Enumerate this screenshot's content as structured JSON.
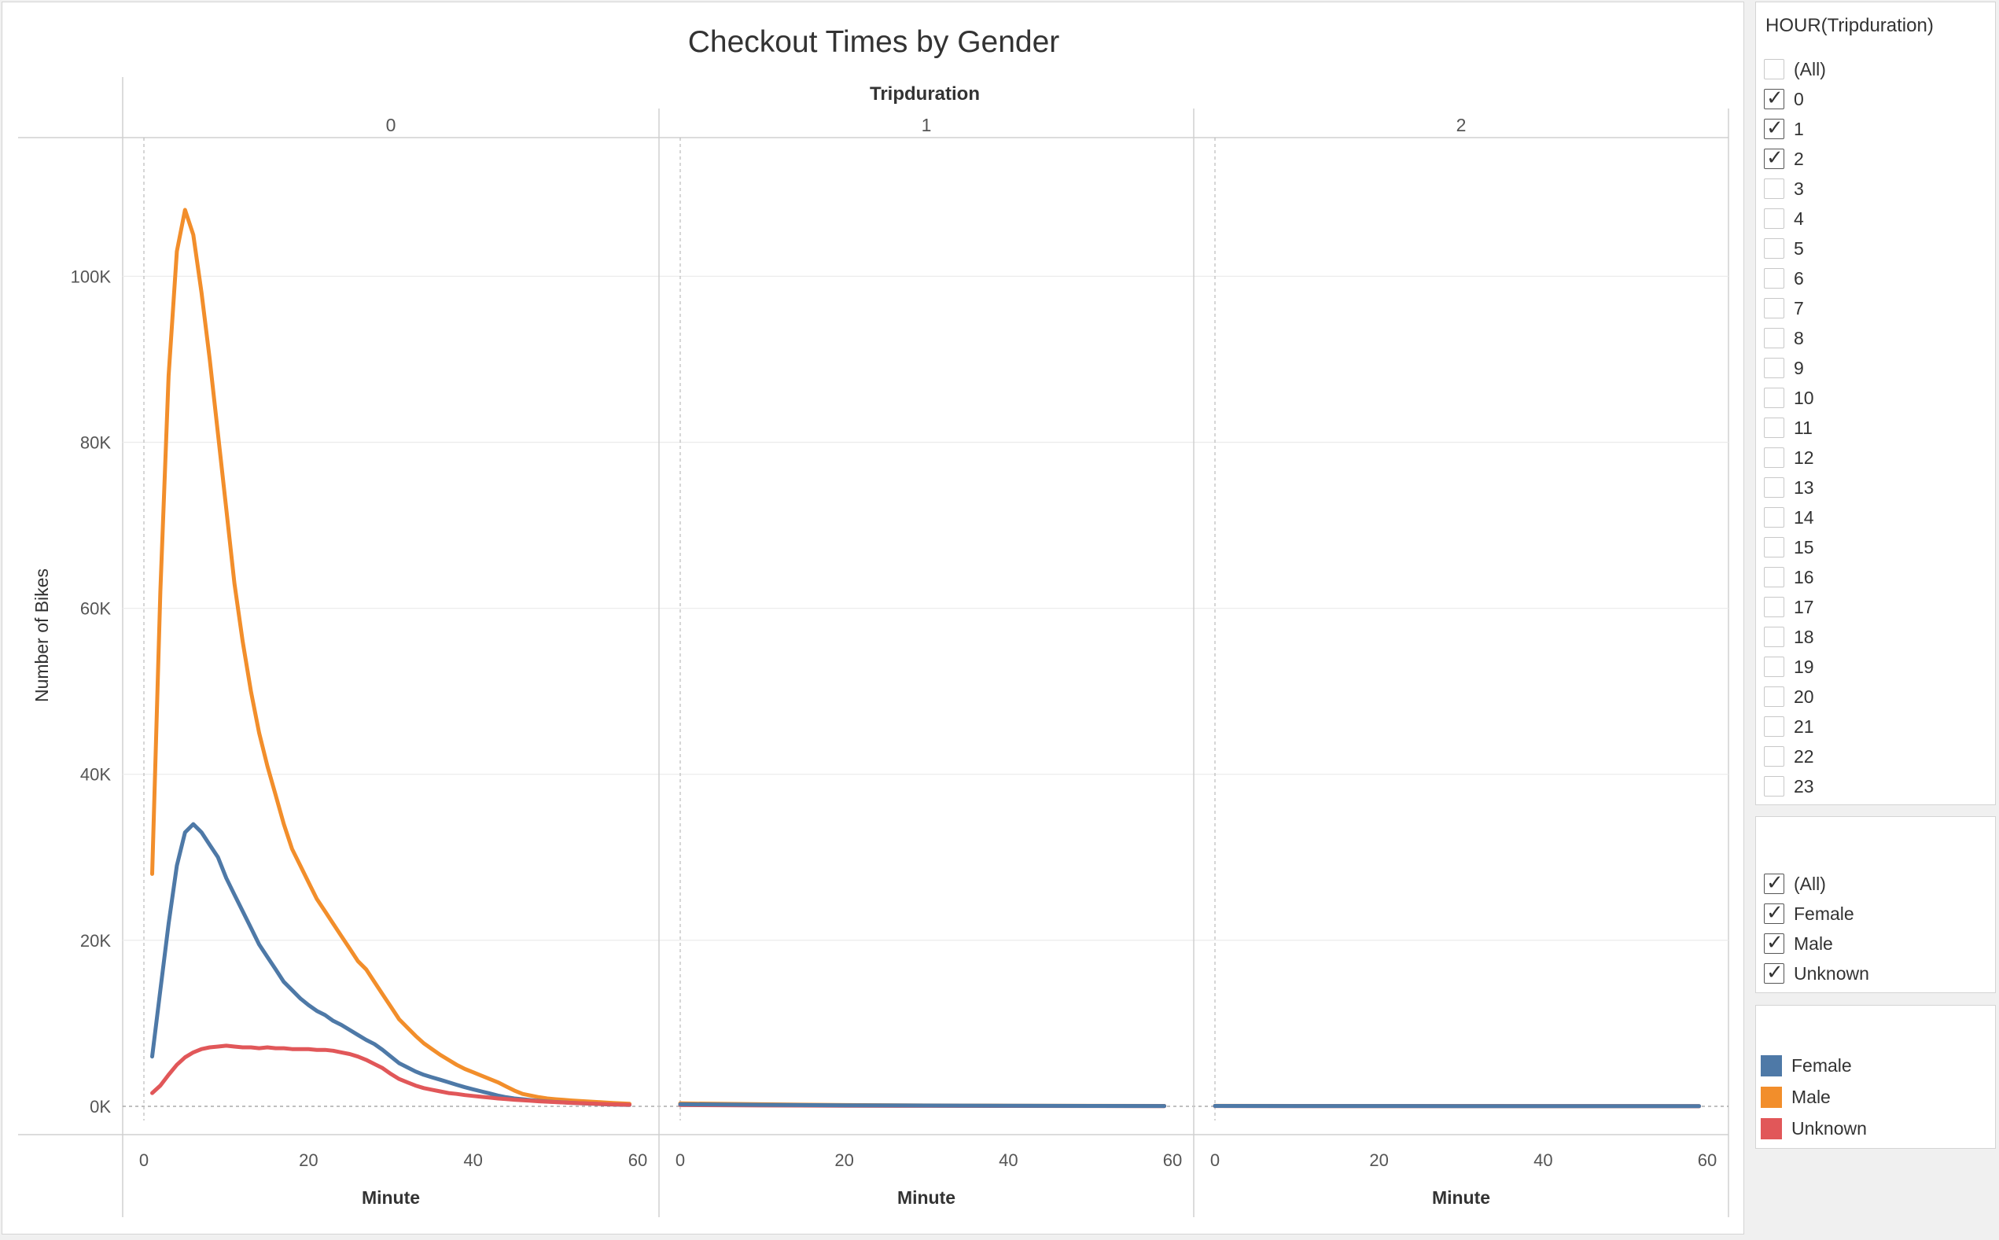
{
  "chart_data": {
    "type": "line",
    "title": "Checkout Times by Gender",
    "column_header": "Tripduration",
    "ylabel": "Number of Bikes",
    "xlabel": "Minute",
    "ylim": [
      0,
      115000
    ],
    "xlim": [
      0,
      60
    ],
    "yticks": [
      "0K",
      "20K",
      "40K",
      "60K",
      "80K",
      "100K"
    ],
    "ytick_values": [
      0,
      20000,
      40000,
      60000,
      80000,
      100000
    ],
    "xticks": [
      "0",
      "20",
      "40",
      "60"
    ],
    "xtick_values": [
      0,
      20,
      40,
      60
    ],
    "grid": true,
    "legend_placement": "right",
    "colors": {
      "Female": "#4e79a7",
      "Male": "#f28e2b",
      "Unknown": "#e15759"
    },
    "panels": [
      {
        "label": "0",
        "series": [
          {
            "name": "Male",
            "x": [
              1,
              2,
              3,
              4,
              5,
              6,
              7,
              8,
              9,
              10,
              11,
              12,
              13,
              14,
              15,
              16,
              17,
              18,
              19,
              20,
              21,
              22,
              23,
              24,
              25,
              26,
              27,
              28,
              29,
              30,
              31,
              32,
              33,
              34,
              35,
              36,
              37,
              38,
              39,
              40,
              41,
              42,
              43,
              44,
              45,
              46,
              47,
              48,
              49,
              50,
              51,
              52,
              53,
              54,
              55,
              56,
              57,
              58,
              59
            ],
            "y": [
              28000,
              62000,
              88000,
              103000,
              108000,
              105000,
              98000,
              90000,
              81000,
              72000,
              63000,
              56000,
              50000,
              45000,
              41000,
              37500,
              34000,
              31000,
              29000,
              27000,
              25000,
              23500,
              22000,
              20500,
              19000,
              17500,
              16500,
              15000,
              13500,
              12000,
              10500,
              9500,
              8500,
              7600,
              6900,
              6200,
              5600,
              5000,
              4500,
              4100,
              3700,
              3300,
              2900,
              2400,
              1900,
              1500,
              1300,
              1100,
              950,
              850,
              780,
              700,
              640,
              580,
              520,
              460,
              400,
              350,
              300
            ]
          },
          {
            "name": "Female",
            "x": [
              1,
              2,
              3,
              4,
              5,
              6,
              7,
              8,
              9,
              10,
              11,
              12,
              13,
              14,
              15,
              16,
              17,
              18,
              19,
              20,
              21,
              22,
              23,
              24,
              25,
              26,
              27,
              28,
              29,
              30,
              31,
              32,
              33,
              34,
              35,
              36,
              37,
              38,
              39,
              40,
              41,
              42,
              43,
              44,
              45,
              46,
              47,
              48,
              49,
              50,
              51,
              52,
              53,
              54,
              55,
              56,
              57,
              58,
              59
            ],
            "y": [
              6000,
              14000,
              22000,
              29000,
              33000,
              34000,
              33000,
              31500,
              30000,
              27500,
              25500,
              23500,
              21500,
              19500,
              18000,
              16500,
              15000,
              14000,
              13000,
              12200,
              11500,
              11000,
              10300,
              9800,
              9200,
              8600,
              8000,
              7500,
              6800,
              6000,
              5200,
              4700,
              4200,
              3800,
              3500,
              3200,
              2900,
              2600,
              2300,
              2050,
              1800,
              1550,
              1300,
              1100,
              950,
              850,
              750,
              650,
              580,
              520,
              470,
              420,
              370,
              330,
              290,
              250,
              220,
              190,
              160
            ]
          },
          {
            "name": "Unknown",
            "x": [
              1,
              2,
              3,
              4,
              5,
              6,
              7,
              8,
              9,
              10,
              11,
              12,
              13,
              14,
              15,
              16,
              17,
              18,
              19,
              20,
              21,
              22,
              23,
              24,
              25,
              26,
              27,
              28,
              29,
              30,
              31,
              32,
              33,
              34,
              35,
              36,
              37,
              38,
              39,
              40,
              41,
              42,
              43,
              44,
              45,
              46,
              47,
              48,
              49,
              50,
              51,
              52,
              53,
              54,
              55,
              56,
              57,
              58,
              59
            ],
            "y": [
              1600,
              2500,
              3800,
              5000,
              5900,
              6500,
              6900,
              7100,
              7200,
              7300,
              7200,
              7100,
              7100,
              7000,
              7100,
              7000,
              7000,
              6900,
              6900,
              6900,
              6800,
              6800,
              6700,
              6500,
              6300,
              6000,
              5600,
              5100,
              4600,
              3900,
              3300,
              2900,
              2500,
              2200,
              2000,
              1800,
              1600,
              1500,
              1350,
              1250,
              1150,
              1050,
              950,
              870,
              800,
              730,
              670,
              610,
              560,
              510,
              460,
              420,
              380,
              340,
              300,
              270,
              240,
              210,
              190
            ]
          }
        ]
      },
      {
        "label": "1",
        "series": [
          {
            "name": "Male",
            "x": [
              0,
              10,
              20,
              30,
              40,
              50,
              59
            ],
            "y": [
              350,
              250,
              150,
              100,
              80,
              60,
              50
            ]
          },
          {
            "name": "Unknown",
            "x": [
              0,
              10,
              20,
              30,
              40,
              50,
              59
            ],
            "y": [
              150,
              100,
              80,
              60,
              50,
              40,
              30
            ]
          },
          {
            "name": "Female",
            "x": [
              0,
              10,
              20,
              30,
              40,
              50,
              59
            ],
            "y": [
              250,
              180,
              120,
              90,
              70,
              50,
              40
            ]
          }
        ]
      },
      {
        "label": "2",
        "series": [
          {
            "name": "Male",
            "x": [
              0,
              10,
              20,
              30,
              40,
              50,
              59
            ],
            "y": [
              60,
              50,
              40,
              35,
              30,
              25,
              20
            ]
          },
          {
            "name": "Unknown",
            "x": [
              0,
              10,
              20,
              30,
              40,
              50,
              59
            ],
            "y": [
              40,
              30,
              25,
              20,
              18,
              15,
              12
            ]
          },
          {
            "name": "Female",
            "x": [
              0,
              10,
              20,
              30,
              40,
              50,
              59
            ],
            "y": [
              50,
              40,
              35,
              30,
              25,
              20,
              15
            ]
          }
        ]
      }
    ]
  },
  "hour_filter": {
    "title": "HOUR(Tripduration)",
    "items": [
      {
        "label": "(All)",
        "checked": false
      },
      {
        "label": "0",
        "checked": true
      },
      {
        "label": "1",
        "checked": true
      },
      {
        "label": "2",
        "checked": true
      },
      {
        "label": "3",
        "checked": false
      },
      {
        "label": "4",
        "checked": false
      },
      {
        "label": "5",
        "checked": false
      },
      {
        "label": "6",
        "checked": false
      },
      {
        "label": "7",
        "checked": false
      },
      {
        "label": "8",
        "checked": false
      },
      {
        "label": "9",
        "checked": false
      },
      {
        "label": "10",
        "checked": false
      },
      {
        "label": "11",
        "checked": false
      },
      {
        "label": "12",
        "checked": false
      },
      {
        "label": "13",
        "checked": false
      },
      {
        "label": "14",
        "checked": false
      },
      {
        "label": "15",
        "checked": false
      },
      {
        "label": "16",
        "checked": false
      },
      {
        "label": "17",
        "checked": false
      },
      {
        "label": "18",
        "checked": false
      },
      {
        "label": "19",
        "checked": false
      },
      {
        "label": "20",
        "checked": false
      },
      {
        "label": "21",
        "checked": false
      },
      {
        "label": "22",
        "checked": false
      },
      {
        "label": "23",
        "checked": false
      }
    ]
  },
  "gender_filter": {
    "items": [
      {
        "label": "(All)",
        "checked": true
      },
      {
        "label": "Female",
        "checked": true
      },
      {
        "label": "Male",
        "checked": true
      },
      {
        "label": "Unknown",
        "checked": true
      }
    ]
  },
  "legend": {
    "items": [
      {
        "label": "Female",
        "color": "#4e79a7"
      },
      {
        "label": "Male",
        "color": "#f28e2b"
      },
      {
        "label": "Unknown",
        "color": "#e15759"
      }
    ]
  },
  "icons": {
    "checkmark": "check-icon"
  }
}
